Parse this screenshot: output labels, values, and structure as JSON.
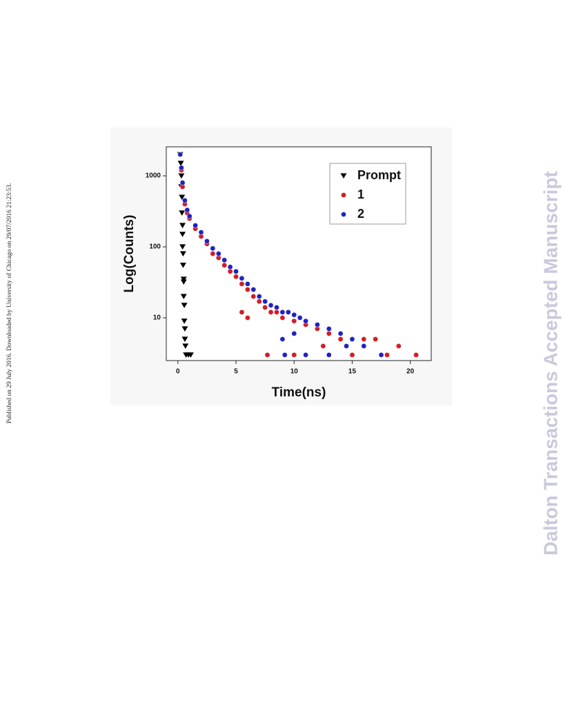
{
  "side_note": "Published on 29 July 2016. Downloaded by University of Chicago on 29/07/2016 21:23:53.",
  "watermark": "Dalton Transactions Accepted Manuscript",
  "chart_data": {
    "type": "scatter",
    "x_label": "Time(ns)",
    "y_label": "Log(Counts)",
    "xlim": [
      -1,
      21.8
    ],
    "xticks": [
      0,
      5,
      10,
      15,
      20
    ],
    "ylim": [
      2.5,
      2560
    ],
    "yticks": [
      10,
      100,
      1000
    ],
    "log_y": true,
    "grid": false,
    "legend": "top-right",
    "series": [
      {
        "name": "Prompt",
        "color": "#000000",
        "marker": "triangle-down",
        "x": [
          0.2,
          0.25,
          0.3,
          0.3,
          0.35,
          0.35,
          0.4,
          0.4,
          0.4,
          0.45,
          0.45,
          0.5,
          0.5,
          0.5,
          0.55,
          0.55,
          0.6,
          0.6,
          0.65,
          0.7,
          0.9,
          1.1
        ],
        "values": [
          2000,
          1500,
          1000,
          700,
          500,
          300,
          200,
          150,
          100,
          80,
          55,
          35,
          32,
          20,
          15,
          9,
          7,
          5,
          4,
          3,
          3,
          3
        ]
      },
      {
        "name": "1",
        "color": "#e8141c",
        "marker": "circle",
        "x": [
          0.2,
          0.3,
          0.4,
          0.6,
          0.8,
          1,
          1.5,
          2,
          2.5,
          3,
          3.5,
          4,
          4.5,
          5,
          5.5,
          6,
          6.5,
          7,
          7.5,
          8,
          8.5,
          9,
          10,
          11,
          12,
          13,
          14,
          16,
          17,
          19,
          20.5,
          7.7,
          10,
          15,
          6,
          5.5,
          18,
          12.5
        ],
        "values": [
          2000,
          1200,
          700,
          400,
          300,
          250,
          180,
          140,
          110,
          80,
          70,
          55,
          45,
          38,
          30,
          25,
          20,
          17,
          14,
          12,
          12,
          10,
          9,
          8,
          7,
          6,
          5,
          5,
          5,
          4,
          3,
          3,
          3,
          3,
          10,
          12,
          3,
          4
        ]
      },
      {
        "name": "2",
        "color": "#1a22d8",
        "marker": "circle",
        "x": [
          0.2,
          0.3,
          0.4,
          0.6,
          0.8,
          1,
          1.5,
          2,
          2.5,
          3,
          3.5,
          4,
          4.5,
          5,
          5.5,
          6,
          6.5,
          7,
          7.5,
          8,
          8.5,
          9,
          9.5,
          10,
          10.5,
          11,
          12,
          13,
          14,
          15,
          16,
          17.5,
          9.2,
          11,
          13,
          9,
          10,
          14.5
        ],
        "values": [
          2000,
          1300,
          800,
          450,
          330,
          270,
          200,
          160,
          120,
          95,
          80,
          65,
          52,
          45,
          36,
          30,
          25,
          20,
          17,
          15,
          14,
          12,
          12,
          11,
          10,
          9,
          8,
          7,
          6,
          5,
          4,
          3,
          3,
          3,
          3,
          5,
          6,
          4
        ]
      }
    ]
  }
}
